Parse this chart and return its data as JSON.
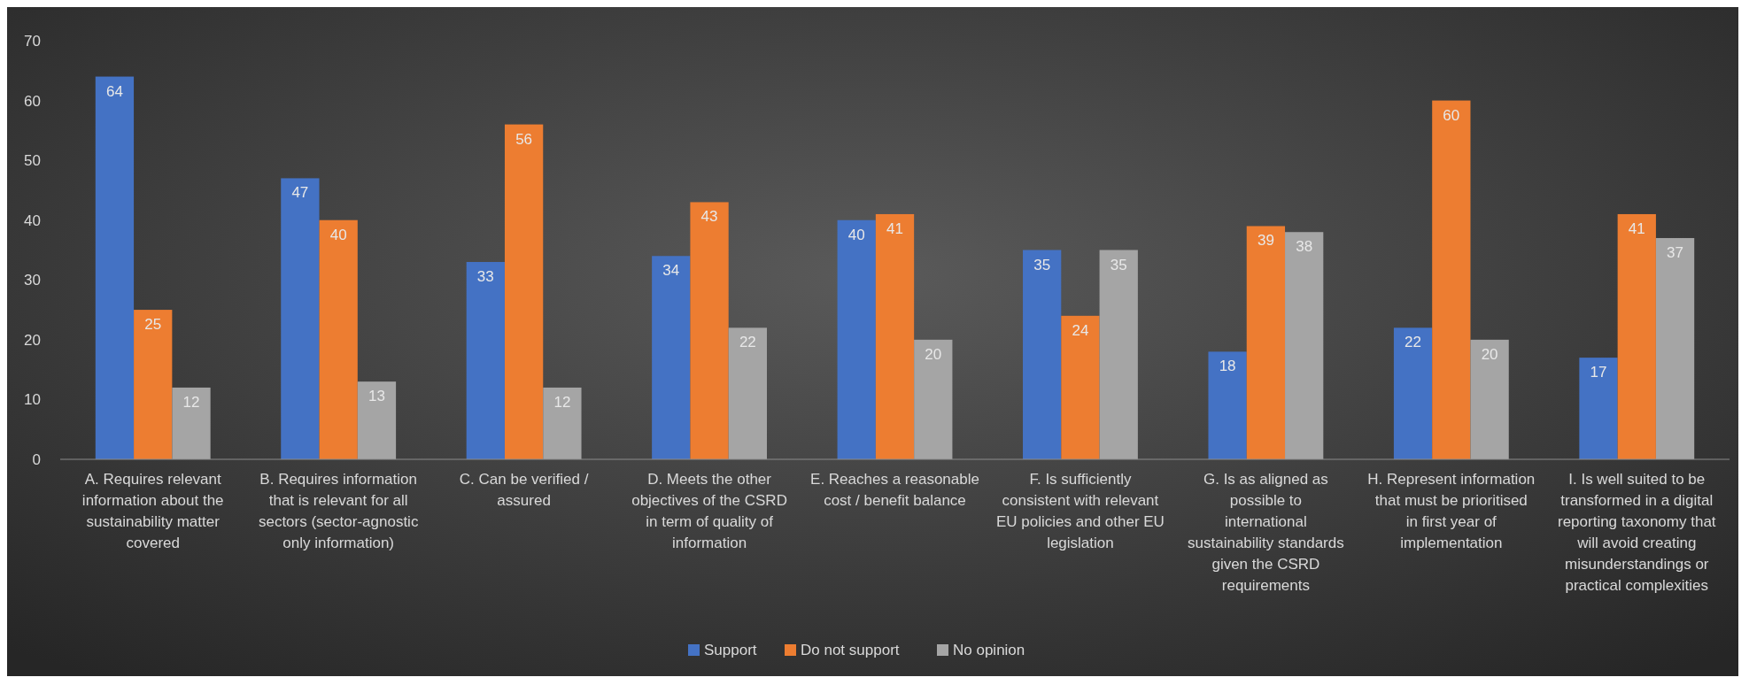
{
  "chart_data": {
    "type": "bar",
    "categories": [
      "A. Requires relevant information about the sustainability matter covered",
      "B. Requires information that is relevant for all sectors (sector-agnostic only information)",
      "C. Can be verified / assured",
      "D. Meets the other objectives of the CSRD in term of quality of information",
      "E. Reaches a reasonable cost / benefit balance",
      "F. Is sufficiently consistent with relevant EU policies and other EU legislation",
      "G. Is as aligned as possible to international sustainability standards given the CSRD requirements",
      "H. Represent information that must be prioritised in first year of implementation",
      "I. Is well suited to be transformed in a digital reporting taxonomy that will avoid creating misunderstandings or practical complexities"
    ],
    "series": [
      {
        "name": "Support",
        "color": "#4472c4",
        "values": [
          64,
          47,
          33,
          34,
          40,
          35,
          18,
          22,
          17
        ]
      },
      {
        "name": "Do not support",
        "color": "#ed7d31",
        "values": [
          25,
          40,
          56,
          43,
          41,
          24,
          39,
          60,
          41
        ]
      },
      {
        "name": "No opinion",
        "color": "#a5a5a5",
        "values": [
          12,
          13,
          12,
          22,
          20,
          35,
          38,
          20,
          37
        ]
      }
    ],
    "ylim": [
      0,
      70
    ],
    "yticks": [
      0,
      10,
      20,
      30,
      40,
      50,
      60,
      70
    ],
    "data_labels": true,
    "legend": "bottom"
  }
}
